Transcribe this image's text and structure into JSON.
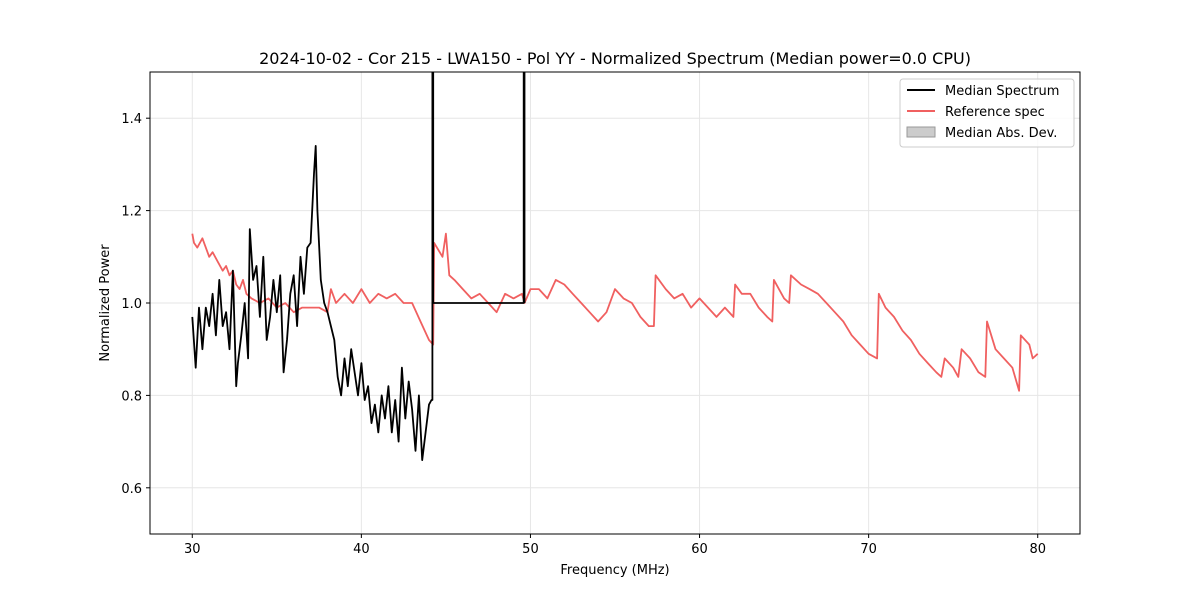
{
  "chart_data": {
    "type": "line",
    "title": "2024-10-02 - Cor 215 - LWA150 - Pol YY - Normalized Spectrum (Median power=0.0 CPU)",
    "xlabel": "Frequency (MHz)",
    "ylabel": "Normalized Power",
    "xlim": [
      27.5,
      82.5
    ],
    "ylim": [
      0.5,
      1.5
    ],
    "x_ticks": [
      30,
      40,
      50,
      60,
      70,
      80
    ],
    "y_ticks": [
      0.6,
      0.8,
      1.0,
      1.2,
      1.4
    ],
    "x_tick_labels": [
      "30",
      "40",
      "50",
      "60",
      "70",
      "80"
    ],
    "y_tick_labels": [
      "0.6",
      "0.8",
      "1.0",
      "1.2",
      "1.4"
    ],
    "grid": true,
    "legend_position": "top-right",
    "legend": [
      "Median Spectrum",
      "Reference spec",
      "Median Abs. Dev."
    ],
    "colors": {
      "median": "#000000",
      "reference": "#f06060",
      "mad_fill": "#cccccc",
      "mad_edge": "#999999",
      "grid": "#e6e6e6"
    },
    "series": [
      {
        "name": "Median Spectrum",
        "x": [
          30.0,
          30.2,
          30.4,
          30.6,
          30.8,
          31.0,
          31.2,
          31.4,
          31.6,
          31.8,
          32.0,
          32.2,
          32.4,
          32.6,
          32.7,
          32.9,
          33.1,
          33.3,
          33.4,
          33.6,
          33.8,
          34.0,
          34.2,
          34.4,
          34.6,
          34.8,
          35.0,
          35.2,
          35.4,
          35.6,
          35.8,
          36.0,
          36.2,
          36.4,
          36.6,
          36.8,
          37.0,
          37.2,
          37.3,
          37.4,
          37.6,
          37.8,
          38.0,
          38.2,
          38.4,
          38.6,
          38.8,
          39.0,
          39.2,
          39.4,
          39.6,
          39.8,
          40.0,
          40.2,
          40.4,
          40.6,
          40.8,
          41.0,
          41.2,
          41.4,
          41.6,
          41.8,
          42.0,
          42.2,
          42.4,
          42.6,
          42.8,
          43.0,
          43.2,
          43.4,
          43.6,
          43.8,
          44.0,
          44.15,
          44.2,
          44.2,
          44.25,
          44.25,
          49.6,
          49.6,
          49.65,
          49.65
        ],
        "values": [
          0.97,
          0.86,
          0.99,
          0.9,
          0.99,
          0.95,
          1.02,
          0.93,
          1.05,
          0.95,
          0.98,
          0.9,
          1.07,
          0.82,
          0.87,
          0.93,
          1.0,
          0.88,
          1.16,
          1.05,
          1.08,
          0.97,
          1.1,
          0.92,
          0.97,
          1.05,
          0.98,
          1.06,
          0.85,
          0.92,
          1.02,
          1.06,
          0.95,
          1.1,
          1.02,
          1.12,
          1.13,
          1.28,
          1.34,
          1.2,
          1.05,
          1.0,
          0.98,
          0.95,
          0.92,
          0.84,
          0.8,
          0.88,
          0.82,
          0.9,
          0.85,
          0.8,
          0.87,
          0.79,
          0.82,
          0.74,
          0.78,
          0.72,
          0.8,
          0.75,
          0.82,
          0.72,
          0.79,
          0.7,
          0.86,
          0.75,
          0.83,
          0.77,
          0.68,
          0.8,
          0.66,
          0.72,
          0.78,
          0.79,
          0.79,
          1.5,
          1.5,
          1.0,
          1.0,
          1.5,
          1.5,
          1.0
        ]
      },
      {
        "name": "Reference spec",
        "x": [
          30.0,
          30.1,
          30.3,
          30.6,
          30.8,
          31.0,
          31.2,
          31.5,
          31.8,
          32.0,
          32.2,
          32.4,
          32.6,
          32.8,
          33.0,
          33.2,
          33.5,
          34.0,
          34.5,
          35.0,
          35.5,
          36.0,
          36.5,
          37.0,
          37.5,
          38.0,
          38.2,
          38.5,
          39.0,
          39.5,
          40.0,
          40.5,
          41.0,
          41.5,
          42.0,
          42.5,
          43.0,
          43.5,
          44.0,
          44.25,
          44.3,
          44.8,
          45.0,
          45.2,
          45.5,
          46.0,
          46.5,
          47.0,
          47.5,
          48.0,
          48.5,
          49.0,
          49.5,
          49.65,
          50.0,
          50.5,
          51.0,
          51.5,
          52.0,
          52.5,
          53.0,
          53.5,
          54.0,
          54.5,
          55.0,
          55.5,
          56.0,
          56.5,
          57.0,
          57.3,
          57.4,
          58.0,
          58.5,
          59.0,
          59.5,
          60.0,
          60.5,
          61.0,
          61.5,
          62.0,
          62.1,
          62.5,
          63.0,
          63.5,
          64.0,
          64.3,
          64.4,
          65.0,
          65.3,
          65.4,
          66.0,
          66.5,
          67.0,
          67.5,
          68.0,
          68.5,
          69.0,
          69.5,
          70.0,
          70.5,
          70.6,
          71.0,
          71.5,
          72.0,
          72.5,
          73.0,
          73.5,
          74.0,
          74.3,
          74.5,
          75.0,
          75.3,
          75.5,
          76.0,
          76.5,
          76.9,
          77.0,
          77.5,
          78.0,
          78.5,
          78.9,
          79.0,
          79.5,
          79.7,
          80.0
        ],
        "values": [
          1.15,
          1.13,
          1.12,
          1.14,
          1.12,
          1.1,
          1.11,
          1.09,
          1.07,
          1.08,
          1.06,
          1.07,
          1.04,
          1.03,
          1.05,
          1.02,
          1.01,
          1.0,
          1.01,
          0.99,
          1.0,
          0.98,
          0.99,
          0.99,
          0.99,
          0.98,
          1.03,
          1.0,
          1.02,
          1.0,
          1.03,
          1.0,
          1.02,
          1.01,
          1.02,
          1.0,
          1.0,
          0.96,
          0.92,
          0.91,
          1.13,
          1.1,
          1.15,
          1.06,
          1.05,
          1.03,
          1.01,
          1.02,
          1.0,
          0.98,
          1.02,
          1.01,
          1.02,
          1.0,
          1.03,
          1.03,
          1.01,
          1.05,
          1.04,
          1.02,
          1.0,
          0.98,
          0.96,
          0.98,
          1.03,
          1.01,
          1.0,
          0.97,
          0.95,
          0.95,
          1.06,
          1.03,
          1.01,
          1.02,
          0.99,
          1.01,
          0.99,
          0.97,
          0.99,
          0.97,
          1.04,
          1.02,
          1.02,
          0.99,
          0.97,
          0.96,
          1.05,
          1.01,
          1.0,
          1.06,
          1.04,
          1.03,
          1.02,
          1.0,
          0.98,
          0.96,
          0.93,
          0.91,
          0.89,
          0.88,
          1.02,
          0.99,
          0.97,
          0.94,
          0.92,
          0.89,
          0.87,
          0.85,
          0.84,
          0.88,
          0.86,
          0.84,
          0.9,
          0.88,
          0.85,
          0.84,
          0.96,
          0.9,
          0.88,
          0.86,
          0.81,
          0.93,
          0.91,
          0.88,
          0.89
        ]
      },
      {
        "name": "Median Abs. Dev.",
        "x": [],
        "values": []
      }
    ]
  }
}
